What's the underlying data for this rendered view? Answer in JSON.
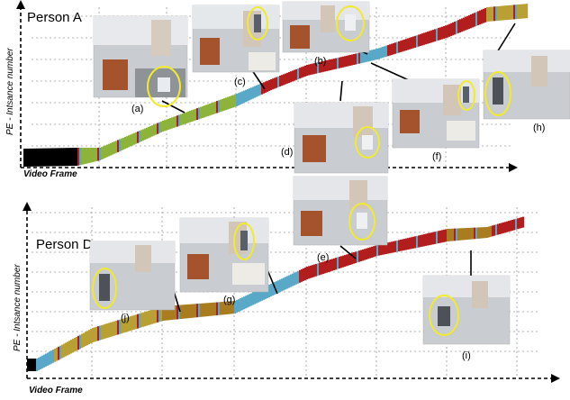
{
  "panels": [
    {
      "title": "Person A",
      "ylabel": "PE - Intsance number",
      "xlabel": "Video Frame",
      "thumb_labels": [
        "(a)",
        "(b)",
        "(c)",
        "(d)",
        "(f)",
        "(h)"
      ]
    },
    {
      "title": "Person D",
      "ylabel": "PE - Intsance number",
      "xlabel": "Video Frame",
      "thumb_labels": [
        "(e)",
        "(g)",
        "(j)",
        "(i)"
      ]
    }
  ],
  "colors": {
    "green": "#8db33a",
    "red": "#b21d1d",
    "blue": "#5aa8c8",
    "olive": "#b8a034",
    "brown": "#a87c1f",
    "black": "#000000",
    "highlight": "#f1ea2d"
  }
}
